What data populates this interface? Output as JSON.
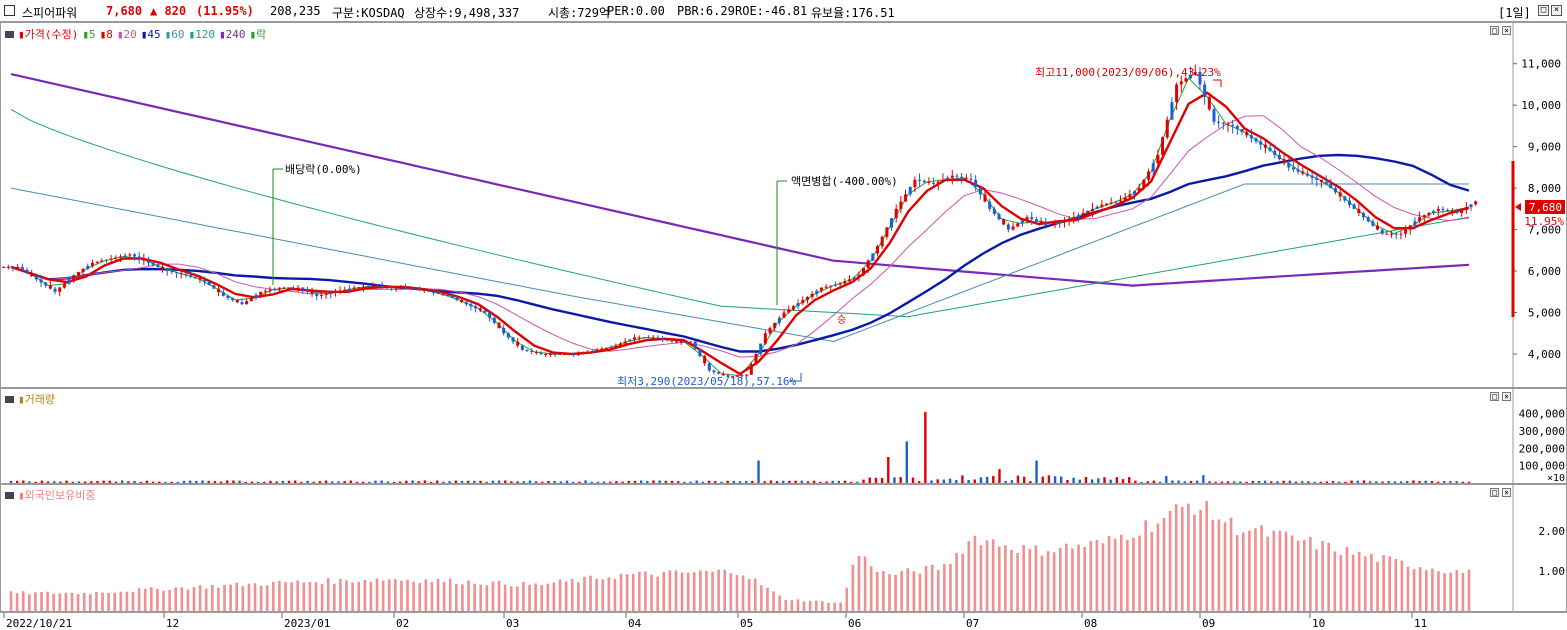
{
  "header": {
    "name": "스피어파워",
    "price": "7,680",
    "change": "▲ 820",
    "change_pct": "(11.95%)",
    "volume": "208,235",
    "market": "구분:KOSDAQ",
    "shares": "상장수:9,498,337",
    "mcap": "시총:729억",
    "per": "PER:0.00",
    "pbr": "PBR:6.29",
    "roe": "ROE:-46.81",
    "float_ratio": "유보율:176.51",
    "period": "[1일]",
    "colors": {
      "up": "#e00000",
      "down": "#1a5fd4"
    }
  },
  "price_panel": {
    "legend": [
      {
        "text": "가격(수정)",
        "color": "#e00000"
      },
      {
        "text": "5",
        "color": "#2aa02a"
      },
      {
        "text": "8",
        "color": "#e00000"
      },
      {
        "text": "20",
        "color": "#cc55aa"
      },
      {
        "text": "45",
        "color": "#0a1aa8"
      },
      {
        "text": "60",
        "color": "#4a8fb0"
      },
      {
        "text": "120",
        "color": "#20a080"
      },
      {
        "text": "240",
        "color": "#7a28b8"
      },
      {
        "text": "락",
        "color": "#2aa02a"
      }
    ],
    "annotations": {
      "dividend": "배당락(0.00%)",
      "reverse_split": "액면병합(-400.00%)",
      "high": "최고11,000(2023/09/06),43.23%",
      "low": "최저3,290(2023/05/18),57.16%",
      "lock_mark": "승"
    },
    "current_price_tag": "7,680",
    "current_pct_tag": "11.95%",
    "y_ticks": [
      "11,000",
      "10,000",
      "9,000",
      "8,000",
      "7,000",
      "6,000",
      "5,000",
      "4,000"
    ]
  },
  "volume_panel": {
    "legend": "거래량",
    "y_ticks": [
      "400,000",
      "300,000",
      "200,000",
      "100,000"
    ],
    "unit": "×10"
  },
  "foreign_panel": {
    "legend": "외국인보유비중",
    "y_ticks": [
      "2.00",
      "1.00"
    ]
  },
  "x_axis": {
    "labels": [
      "2022/10/21",
      "12",
      "2023/01",
      "02",
      "03",
      "04",
      "05",
      "06",
      "07",
      "08",
      "09",
      "10",
      "11"
    ]
  },
  "chart_data": {
    "type": "candlestick",
    "x_months": [
      "2022/10/21",
      "12",
      "2023/01",
      "02",
      "03",
      "04",
      "05",
      "06",
      "07",
      "08",
      "09",
      "10",
      "11"
    ],
    "price_ylim": [
      3300,
      11500
    ],
    "price_close_approx": [
      6100,
      5800,
      5500,
      5900,
      6200,
      6300,
      6400,
      6200,
      6000,
      5900,
      5750,
      5400,
      5200,
      5500,
      5600,
      5600,
      5400,
      5500,
      5600,
      5650,
      5600,
      5600,
      5500,
      5400,
      5200,
      5000,
      4500,
      4100,
      4000,
      4000,
      4000,
      4100,
      4200,
      4400,
      4400,
      4300,
      4300,
      3600,
      3450,
      3500,
      4500,
      5000,
      5300,
      5600,
      5700,
      5900,
      6600,
      7500,
      8200,
      8100,
      8300,
      8200,
      7500,
      7000,
      7300,
      7100,
      7200,
      7400,
      7600,
      7700,
      8000,
      8800,
      10500,
      10800,
      9600,
      9500,
      9200,
      8900,
      8500,
      8300,
      8100,
      7700,
      7300,
      6900,
      6900,
      7300,
      7500,
      7400,
      7680
    ],
    "high": {
      "price": 11000,
      "date": "2023/09/06",
      "pct": 43.23
    },
    "low": {
      "price": 3290,
      "date": "2023/05/18",
      "pct": 57.16
    },
    "volume_ylim": [
      0,
      450000
    ],
    "foreign_ratio_ylim": [
      0,
      2.9
    ]
  }
}
